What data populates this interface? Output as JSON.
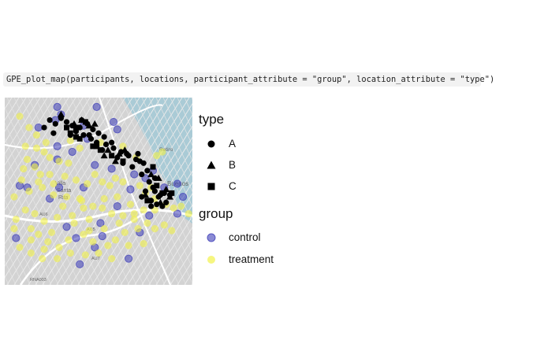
{
  "code": {
    "command": "GPE_plot_map(participants, locations, participant_attribute = \"group\", location_attribute = \"type\")"
  },
  "colors": {
    "control": "#3d3db8",
    "treatment": "#f2f24a",
    "location_marker": "#000000",
    "water": "#aacbd6"
  },
  "map_labels": [
    "Retiro",
    "Buenos",
    "Villa",
    "Santa",
    "Rita",
    "AU6",
    "AU5",
    "AU7",
    "RNA003"
  ],
  "chart_data": {
    "type": "scatter",
    "title": "",
    "xlabel": "",
    "ylabel": "",
    "xlim": [
      0,
      100
    ],
    "ylim": [
      0,
      100
    ],
    "grid": false,
    "legend_position": "right",
    "legend": {
      "shape_title": "type",
      "shape_entries": [
        {
          "label": "A",
          "shape": "circle"
        },
        {
          "label": "B",
          "shape": "triangle"
        },
        {
          "label": "C",
          "shape": "square"
        }
      ],
      "color_title": "group",
      "color_entries": [
        {
          "label": "control",
          "color": "#3d3db8"
        },
        {
          "label": "treatment",
          "color": "#f2f24a"
        }
      ]
    },
    "series": [
      {
        "name": "control",
        "kind": "participant",
        "points": [
          [
            28,
            95
          ],
          [
            49,
            95
          ],
          [
            30,
            91
          ],
          [
            18,
            84
          ],
          [
            42,
            85
          ],
          [
            58,
            87
          ],
          [
            60,
            83
          ],
          [
            28,
            74
          ],
          [
            44,
            78
          ],
          [
            36,
            71
          ],
          [
            28,
            67
          ],
          [
            16,
            64
          ],
          [
            48,
            64
          ],
          [
            57,
            62
          ],
          [
            69,
            59
          ],
          [
            75,
            57
          ],
          [
            79,
            61
          ],
          [
            12,
            52
          ],
          [
            42,
            52
          ],
          [
            29,
            52
          ],
          [
            67,
            51
          ],
          [
            85,
            52
          ],
          [
            92,
            54
          ],
          [
            24,
            46
          ],
          [
            60,
            42
          ],
          [
            77,
            37
          ],
          [
            33,
            31
          ],
          [
            51,
            33
          ],
          [
            52,
            26
          ],
          [
            72,
            28
          ],
          [
            48,
            20
          ],
          [
            6,
            25
          ],
          [
            66,
            14
          ],
          [
            40,
            11
          ],
          [
            92,
            38
          ],
          [
            95,
            47
          ],
          [
            38,
            25
          ],
          [
            8,
            53
          ],
          [
            27,
            88
          ]
        ]
      },
      {
        "name": "treatment",
        "kind": "participant",
        "points": [
          [
            8,
            90
          ],
          [
            13,
            84
          ],
          [
            17,
            80
          ],
          [
            22,
            76
          ],
          [
            35,
            77
          ],
          [
            40,
            73
          ],
          [
            51,
            76
          ],
          [
            63,
            74
          ],
          [
            70,
            68
          ],
          [
            81,
            69
          ],
          [
            84,
            71
          ],
          [
            11,
            74
          ],
          [
            17,
            73
          ],
          [
            21,
            71
          ],
          [
            24,
            68
          ],
          [
            29,
            66
          ],
          [
            34,
            65
          ],
          [
            12,
            67
          ],
          [
            16,
            63
          ],
          [
            19,
            59
          ],
          [
            24,
            59
          ],
          [
            32,
            58
          ],
          [
            38,
            56
          ],
          [
            44,
            54
          ],
          [
            48,
            59
          ],
          [
            52,
            55
          ],
          [
            56,
            53
          ],
          [
            59,
            57
          ],
          [
            63,
            55
          ],
          [
            72,
            53
          ],
          [
            75,
            49
          ],
          [
            80,
            46
          ],
          [
            86,
            43
          ],
          [
            90,
            41
          ],
          [
            94,
            42
          ],
          [
            9,
            56
          ],
          [
            13,
            50
          ],
          [
            20,
            52
          ],
          [
            26,
            48
          ],
          [
            33,
            47
          ],
          [
            40,
            46
          ],
          [
            47,
            42
          ],
          [
            52,
            41
          ],
          [
            57,
            38
          ],
          [
            63,
            37
          ],
          [
            69,
            38
          ],
          [
            85,
            32
          ],
          [
            89,
            29
          ],
          [
            5,
            47
          ],
          [
            11,
            40
          ],
          [
            16,
            38
          ],
          [
            21,
            34
          ],
          [
            28,
            36
          ],
          [
            36,
            37
          ],
          [
            45,
            35
          ],
          [
            53,
            30
          ],
          [
            61,
            33
          ],
          [
            69,
            35
          ],
          [
            76,
            33
          ],
          [
            80,
            30
          ],
          [
            6,
            35
          ],
          [
            14,
            30
          ],
          [
            18,
            27
          ],
          [
            23,
            23
          ],
          [
            29,
            20
          ],
          [
            34,
            24
          ],
          [
            42,
            27
          ],
          [
            47,
            23
          ],
          [
            55,
            21
          ],
          [
            59,
            24
          ],
          [
            66,
            21
          ],
          [
            74,
            40
          ],
          [
            78,
            52
          ],
          [
            5,
            30
          ],
          [
            14,
            24
          ],
          [
            21,
            19
          ],
          [
            28,
            14
          ],
          [
            35,
            17
          ],
          [
            43,
            16
          ],
          [
            50,
            17
          ],
          [
            57,
            14
          ],
          [
            71,
            30
          ],
          [
            74,
            22
          ],
          [
            8,
            20
          ],
          [
            14,
            17
          ],
          [
            20,
            14
          ],
          [
            41,
            45
          ],
          [
            37,
            33
          ],
          [
            10,
            62
          ],
          [
            18,
            55
          ],
          [
            26,
            54
          ],
          [
            31,
            42
          ],
          [
            42,
            41
          ],
          [
            53,
            46
          ],
          [
            60,
            47
          ],
          [
            67,
            43
          ],
          [
            80,
            40
          ],
          [
            98,
            38
          ],
          [
            64,
            28
          ],
          [
            45,
            29
          ],
          [
            25,
            28
          ]
        ]
      },
      {
        "name": "A",
        "kind": "location",
        "shape": "circle",
        "points": [
          [
            24,
            88
          ],
          [
            27,
            86
          ],
          [
            30,
            89
          ],
          [
            33,
            87
          ],
          [
            36,
            85
          ],
          [
            40,
            84
          ],
          [
            44,
            86
          ],
          [
            47,
            83
          ],
          [
            50,
            81
          ],
          [
            53,
            79
          ],
          [
            38,
            82
          ],
          [
            42,
            80
          ],
          [
            46,
            78
          ],
          [
            49,
            76
          ],
          [
            54,
            75
          ],
          [
            58,
            73
          ],
          [
            62,
            71
          ],
          [
            66,
            69
          ],
          [
            70,
            67
          ],
          [
            74,
            65
          ],
          [
            76,
            61
          ],
          [
            73,
            59
          ],
          [
            77,
            55
          ],
          [
            79,
            52
          ],
          [
            80,
            50
          ],
          [
            82,
            47
          ],
          [
            78,
            45
          ],
          [
            81,
            43
          ],
          [
            84,
            42
          ],
          [
            86,
            44
          ],
          [
            83,
            48
          ],
          [
            75,
            50
          ],
          [
            72,
            66
          ],
          [
            68,
            63
          ],
          [
            65,
            70
          ],
          [
            60,
            68
          ],
          [
            57,
            76
          ],
          [
            52,
            72
          ],
          [
            45,
            80
          ],
          [
            35,
            80
          ],
          [
            21,
            84
          ],
          [
            26,
            81
          ],
          [
            41,
            88
          ],
          [
            80,
            57
          ],
          [
            85,
            49
          ],
          [
            78,
            42
          ],
          [
            73,
            47
          ],
          [
            71,
            70
          ],
          [
            88,
            48
          ],
          [
            63,
            65
          ]
        ]
      },
      {
        "name": "B",
        "kind": "location",
        "shape": "triangle",
        "points": [
          [
            30,
            91
          ],
          [
            41,
            88
          ],
          [
            48,
            86
          ],
          [
            55,
            72
          ],
          [
            61,
            70
          ],
          [
            64,
            72
          ],
          [
            78,
            59
          ],
          [
            82,
            57
          ],
          [
            86,
            51
          ],
          [
            88,
            47
          ],
          [
            75,
            48
          ],
          [
            83,
            44
          ],
          [
            37,
            86
          ],
          [
            45,
            85
          ],
          [
            53,
            69
          ],
          [
            59,
            66
          ]
        ]
      },
      {
        "name": "C",
        "kind": "location",
        "shape": "square",
        "points": [
          [
            33,
            84
          ],
          [
            38,
            84
          ],
          [
            43,
            87
          ],
          [
            35,
            81
          ],
          [
            40,
            78
          ],
          [
            47,
            74
          ],
          [
            51,
            72
          ],
          [
            57,
            69
          ],
          [
            63,
            66
          ],
          [
            79,
            63
          ],
          [
            81,
            53
          ],
          [
            84,
            49
          ],
          [
            89,
            49
          ],
          [
            76,
            45
          ],
          [
            38,
            79
          ],
          [
            49,
            74
          ]
        ]
      }
    ]
  }
}
